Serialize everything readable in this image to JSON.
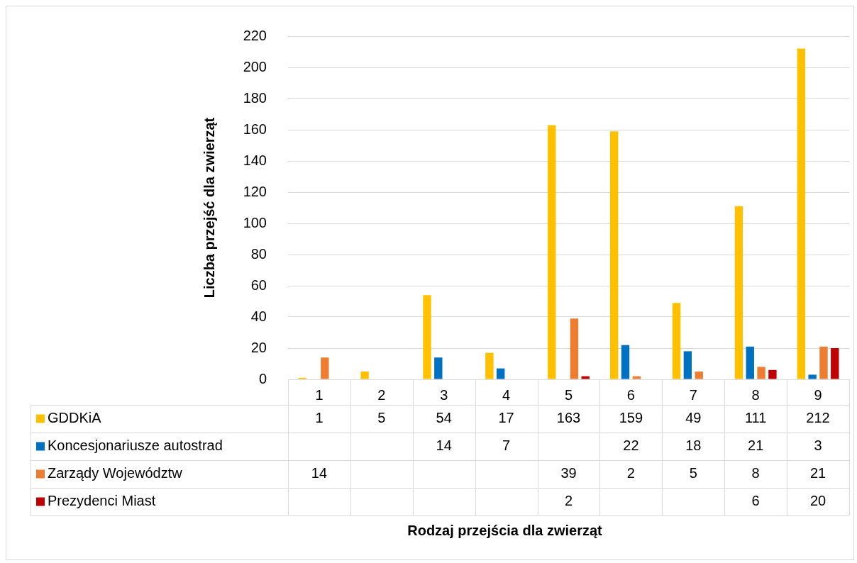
{
  "chart_data": {
    "type": "bar",
    "annotations": [
      "Rodzaj przejścia dla zwierząt"
    ],
    "ylabel": "Liczba przejść dla zwierząt",
    "categories": [
      "1",
      "2",
      "3",
      "4",
      "5",
      "6",
      "7",
      "8",
      "9"
    ],
    "series": [
      {
        "name": "GDDKiA",
        "color": "#ffc000",
        "values": [
          1,
          5,
          54,
          17,
          163,
          159,
          49,
          111,
          212
        ]
      },
      {
        "name": "Koncesjonariusze autostrad",
        "color": "#0070c0",
        "values": [
          null,
          null,
          14,
          7,
          null,
          22,
          18,
          21,
          3
        ]
      },
      {
        "name": "Zarządy Województw",
        "color": "#ed7d31",
        "values": [
          14,
          null,
          null,
          null,
          39,
          2,
          5,
          8,
          21
        ]
      },
      {
        "name": "Prezydenci Miast",
        "color": "#c00000",
        "values": [
          null,
          null,
          null,
          null,
          2,
          null,
          null,
          6,
          20
        ]
      }
    ],
    "ylim": [
      0,
      220
    ],
    "yticks": [
      0,
      20,
      40,
      60,
      80,
      100,
      120,
      140,
      160,
      180,
      200,
      220
    ],
    "grid": true,
    "legend": "bottom left",
    "data_labels": true
  }
}
